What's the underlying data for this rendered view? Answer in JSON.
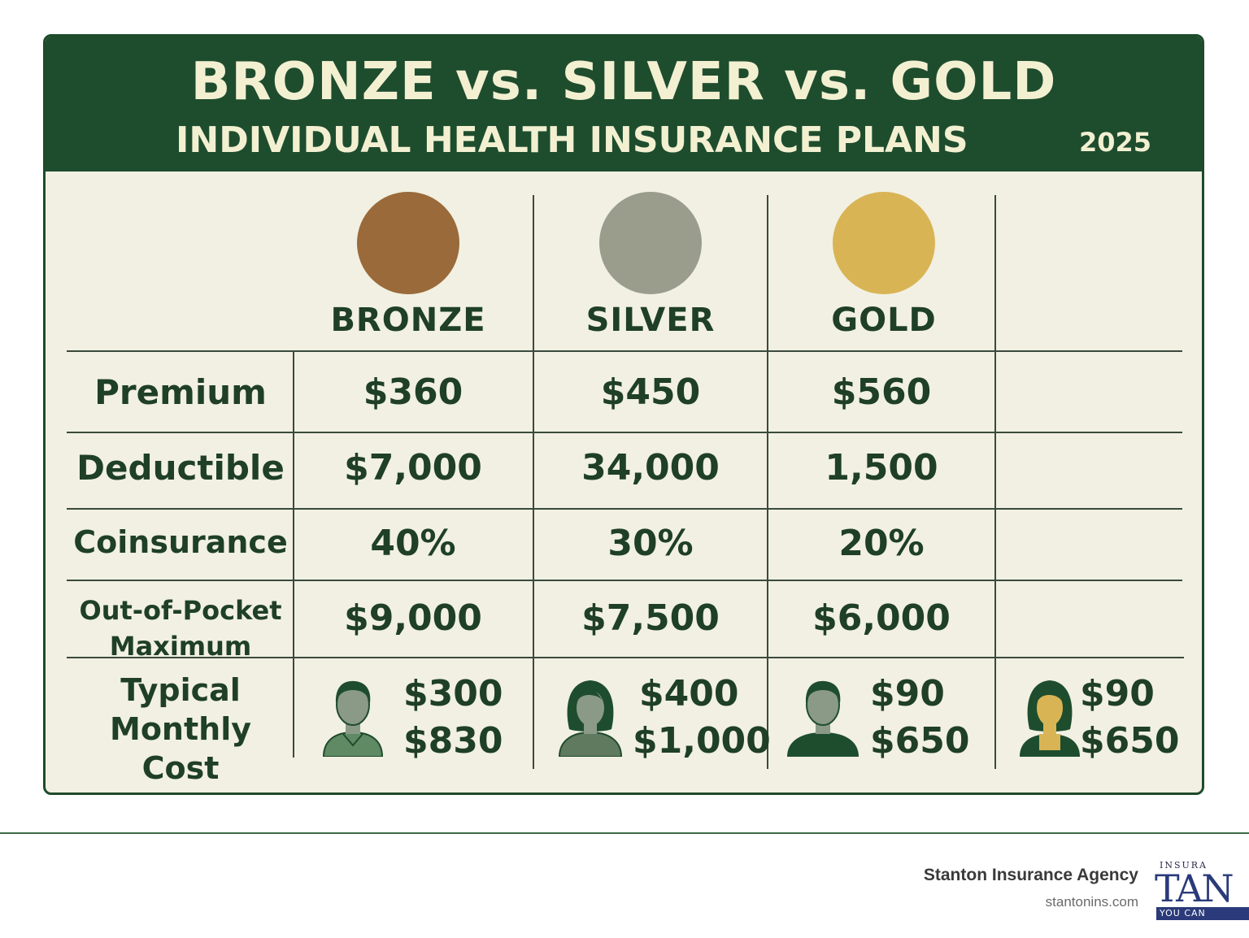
{
  "header": {
    "title": "BRONZE vs. SILVER vs. GOLD",
    "subtitle": "INDIVIDUAL HEALTH INSURANCE PLANS",
    "year": "2025"
  },
  "colors": {
    "header_bg": "#1e4d2e",
    "panel_bg": "#f1f0e2",
    "text": "#1f3f27",
    "bronze": "#9a6a3a",
    "silver": "#9a9c8c",
    "gold": "#d9b455"
  },
  "plans": [
    {
      "name": "BRONZE",
      "coin_color": "#9a6a3a"
    },
    {
      "name": "SILVER",
      "coin_color": "#9a9c8c"
    },
    {
      "name": "GOLD",
      "coin_color": "#d9b455"
    }
  ],
  "rows": {
    "premium": {
      "label": "Premium",
      "values": [
        "$360",
        "$450",
        "$560"
      ]
    },
    "deductible": {
      "label": "Deductible",
      "values": [
        "$7,000",
        "34,000",
        "1,500"
      ]
    },
    "coinsurance": {
      "label": "Coinsurance",
      "values": [
        "40%",
        "30%",
        "20%"
      ]
    },
    "oop": {
      "label_line1": "Out-of-Pocket",
      "label_line2": "Maximum",
      "values": [
        "$9,000",
        "$7,500",
        "$6,000"
      ]
    },
    "monthly": {
      "label_line1": "Typical",
      "label_line2": "Monthly Cost",
      "entries": [
        {
          "icon": "male-person-icon",
          "low": "$300",
          "high": "$830"
        },
        {
          "icon": "female-person-icon",
          "low": "$400",
          "high": "$1,000"
        },
        {
          "icon": "male-person-icon",
          "low": "$90",
          "high": "$650"
        },
        {
          "icon": "female-person-gold-icon",
          "low": "$90",
          "high": "$650"
        }
      ]
    }
  },
  "footer": {
    "agency": "Stanton Insurance Agency",
    "url": "stantonins.com",
    "logo_top": "INSURA",
    "logo_main": "TAN",
    "logo_bottom": "YOU CAN"
  }
}
